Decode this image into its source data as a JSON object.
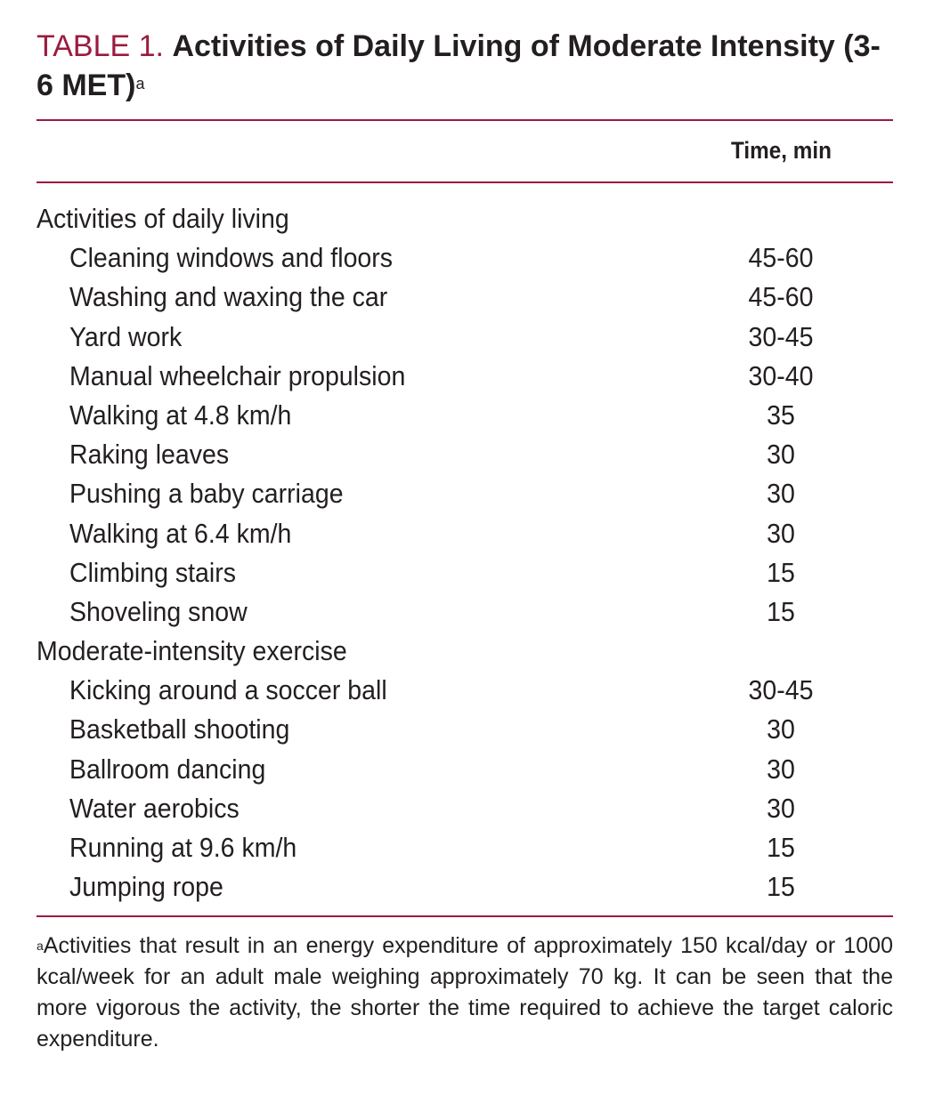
{
  "title": {
    "label": "TABLE 1.",
    "text": "Activities of Daily Living of Moderate Intensity (3-6 MET)",
    "footnote_mark": "a"
  },
  "colors": {
    "accent": "#9b1b3f",
    "text": "#231f20"
  },
  "table": {
    "column_header": "Time, min",
    "rows": [
      {
        "activity": "Activities of daily living",
        "time": "",
        "group": true
      },
      {
        "activity": "Cleaning windows and floors",
        "time": "45-60"
      },
      {
        "activity": "Washing and waxing the car",
        "time": "45-60"
      },
      {
        "activity": "Yard work",
        "time": "30-45"
      },
      {
        "activity": "Manual wheelchair propulsion",
        "time": "30-40"
      },
      {
        "activity": "Walking at 4.8 km/h",
        "time": "35"
      },
      {
        "activity": "Raking leaves",
        "time": "30"
      },
      {
        "activity": "Pushing a baby carriage",
        "time": "30"
      },
      {
        "activity": "Walking at 6.4 km/h",
        "time": "30"
      },
      {
        "activity": "Climbing stairs",
        "time": "15"
      },
      {
        "activity": "Shoveling snow",
        "time": "15"
      },
      {
        "activity": "Moderate-intensity exercise",
        "time": "",
        "group": true
      },
      {
        "activity": "Kicking around a soccer ball",
        "time": "30-45"
      },
      {
        "activity": "Basketball shooting",
        "time": "30"
      },
      {
        "activity": "Ballroom dancing",
        "time": "30"
      },
      {
        "activity": "Water aerobics",
        "time": "30"
      },
      {
        "activity": "Running at 9.6 km/h",
        "time": "15"
      },
      {
        "activity": "Jumping rope",
        "time": "15"
      }
    ]
  },
  "footnote": {
    "mark": "a",
    "text": "Activities that result in an energy expenditure of approximately 150 kcal/day or 1000 kcal/week for an adult male weighing approximately 70 kg. It can be seen that the more vigorous the activity, the shorter the time required to achieve the target caloric expenditure."
  }
}
